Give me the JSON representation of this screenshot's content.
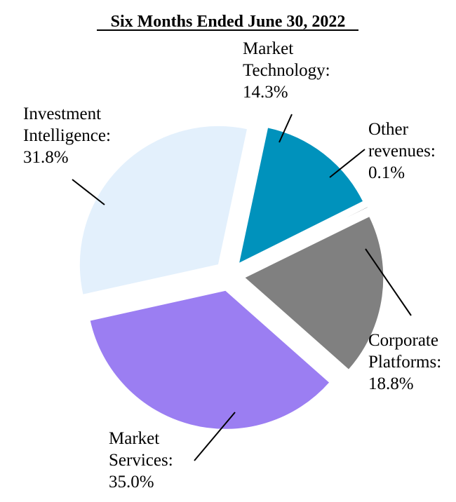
{
  "chart_data": {
    "type": "pie",
    "title": "Six Months Ended June 30, 2022",
    "slices": [
      {
        "name": "Market Technology",
        "value": 14.3,
        "label_lines": [
          "Market",
          "Technology:",
          "14.3%"
        ],
        "color": "#0092BC"
      },
      {
        "name": "Other revenues",
        "value": 0.1,
        "label_lines": [
          "Other",
          "revenues:",
          "0.1%"
        ],
        "color": "#5a5a5a"
      },
      {
        "name": "Corporate Platforms",
        "value": 18.8,
        "label_lines": [
          "Corporate",
          "Platforms:",
          "18.8%"
        ],
        "color": "#808080"
      },
      {
        "name": "Market Services",
        "value": 35.0,
        "label_lines": [
          "Market",
          "Services:",
          "35.0%"
        ],
        "color": "#9B7EF2"
      },
      {
        "name": "Investment Intelligence",
        "value": 31.8,
        "label_lines": [
          "Investment",
          "Intelligence:",
          "31.8%"
        ],
        "color": "#E3F0FC"
      }
    ]
  }
}
